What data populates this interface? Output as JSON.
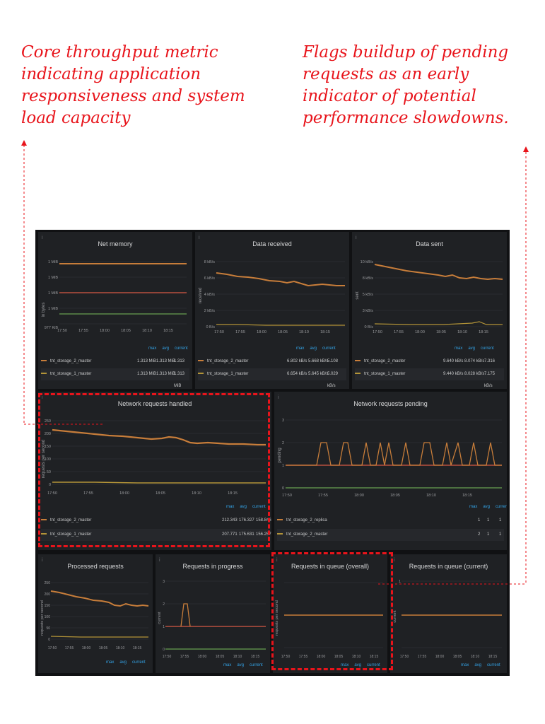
{
  "annotations": {
    "left": "Core throughput metric indicating application responsiveness and system load capacity",
    "right": "Flags buildup of pending requests as an early indicator of potential performance slowdowns."
  },
  "colors": {
    "accent": "#e8141b",
    "series_orange": "#c77d3a",
    "series_yellow": "#b39438",
    "series_red": "#b8503e",
    "series_green": "#5b8a4a",
    "link": "#33a2e5"
  },
  "legend_labels": {
    "max": "max",
    "avg": "avg",
    "current": "current"
  },
  "time_ticks": [
    "17:50",
    "17:55",
    "18:00",
    "18:05",
    "18:10",
    "18:15"
  ],
  "panels": {
    "net_memory": {
      "title": "Net memory",
      "y_title": "in bytes",
      "y_ticks": [
        "1 MiB",
        "1 MiB",
        "1 MiB",
        "1 MiB",
        "977 KiB"
      ],
      "rows": [
        {
          "name": "tnt_storage_2_master",
          "max": "1.313 MiB",
          "avg": "1.313 MiB",
          "current": "1.313 MiB"
        },
        {
          "name": "tnt_storage_1_master",
          "max": "1.313 MiB",
          "avg": "1.313 MiB",
          "current": "1.313 MiB"
        }
      ]
    },
    "data_received": {
      "title": "Data received",
      "y_title": "received",
      "y_ticks": [
        "8 kB/s",
        "6 kB/s",
        "4 kB/s",
        "2 kB/s",
        "0 B/s"
      ],
      "rows": [
        {
          "name": "tnt_storage_2_master",
          "max": "6.802 kB/s",
          "avg": "5.668 kB/s",
          "current": "5.108 kB/s"
        },
        {
          "name": "tnt_storage_1_master",
          "max": "6.654 kB/s",
          "avg": "5.645 kB/s",
          "current": "5.029 kB/s"
        }
      ]
    },
    "data_sent": {
      "title": "Data sent",
      "y_title": "sent",
      "y_ticks": [
        "10 kB/s",
        "8 kB/s",
        "5 kB/s",
        "3 kB/s",
        "0 B/s"
      ],
      "rows": [
        {
          "name": "tnt_storage_2_master",
          "max": "9.640 kB/s",
          "avg": "8.074 kB/s",
          "current": "7.316 kB/s"
        },
        {
          "name": "tnt_storage_1_master",
          "max": "9.440 kB/s",
          "avg": "8.028 kB/s",
          "current": "7.175 kB/s"
        }
      ]
    },
    "net_requests_handled": {
      "title": "Network requests handled",
      "y_title": "requests per second",
      "y_ticks": [
        "250",
        "200",
        "150",
        "100",
        "50",
        "0"
      ],
      "rows": [
        {
          "name": "tnt_storage_2_master",
          "max": "212.343",
          "avg": "176.327",
          "current": "158.846"
        },
        {
          "name": "tnt_storage_1_master",
          "max": "207.771",
          "avg": "175.631",
          "current": "156.257"
        }
      ]
    },
    "net_requests_pending": {
      "title": "Network requests pending",
      "y_title": "pending",
      "y_ticks": [
        "3",
        "2",
        "1",
        "0"
      ],
      "rows": [
        {
          "name": "tnt_storage_2_replica",
          "max": "1",
          "avg": "1",
          "current": "1"
        },
        {
          "name": "tnt_storage_2_master",
          "max": "2",
          "avg": "1",
          "current": "1"
        }
      ]
    },
    "processed_requests": {
      "title": "Processed requests",
      "y_title": "requests per second",
      "y_ticks": [
        "250",
        "200",
        "150",
        "100",
        "50",
        "0"
      ]
    },
    "requests_in_progress": {
      "title": "Requests in progress",
      "y_title": "current",
      "y_ticks": [
        "3",
        "2",
        "1",
        "0"
      ]
    },
    "requests_in_queue_overall": {
      "title": "Requests in queue (overall)",
      "y_title": "requests per second"
    },
    "requests_in_queue_current": {
      "title": "Requests in queue (current)",
      "y_title": "current",
      "y_ticks": [
        "1"
      ]
    }
  }
}
